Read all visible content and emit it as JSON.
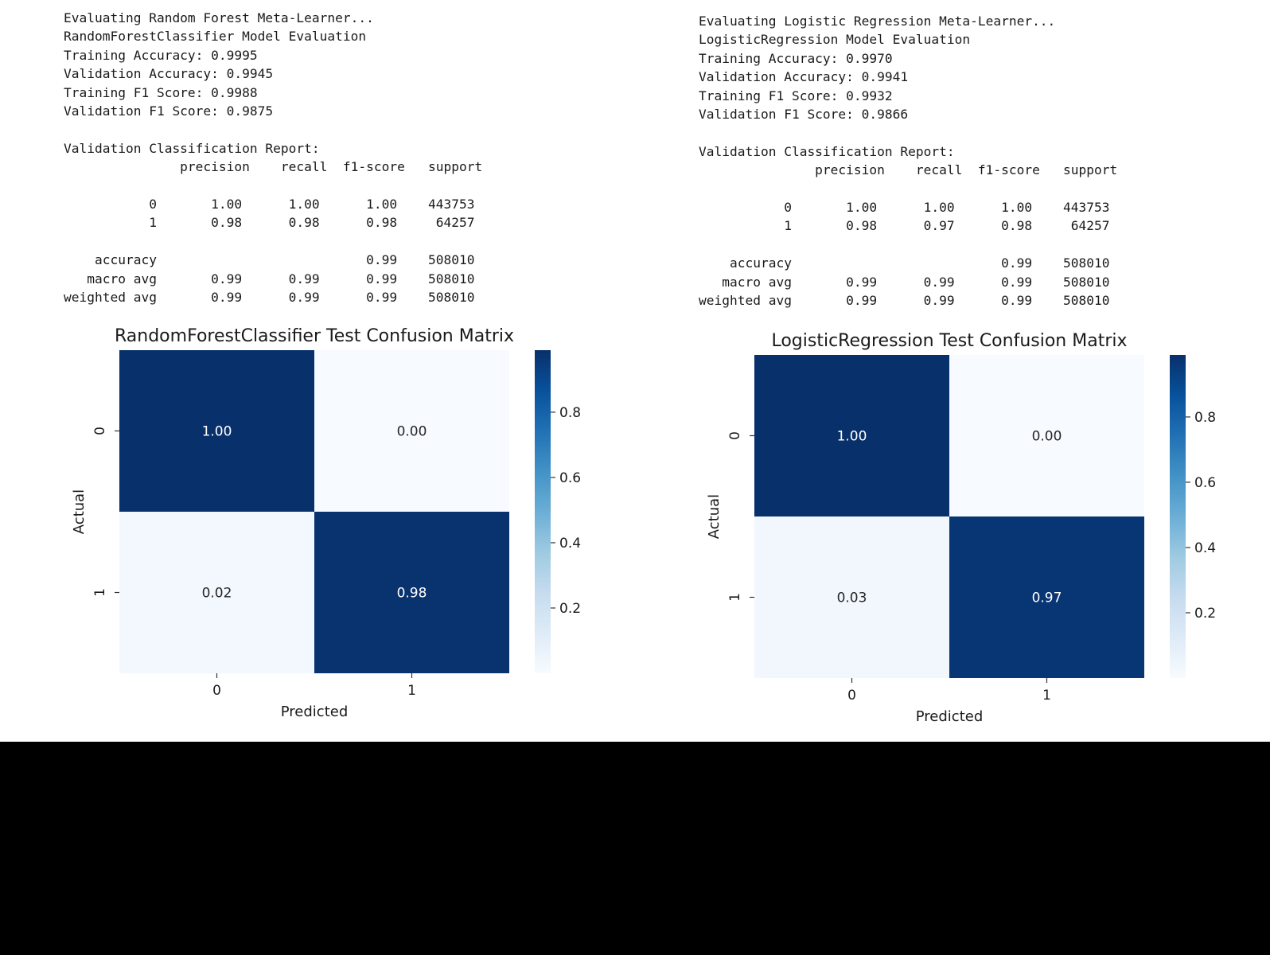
{
  "panels": [
    {
      "log": {
        "lines": [
          "Evaluating Random Forest Meta-Learner...",
          "RandomForestClassifier Model Evaluation",
          "Training Accuracy: 0.9995",
          "Validation Accuracy: 0.9945",
          "Training F1 Score: 0.9988",
          "Validation F1 Score: 0.9875",
          "",
          "Validation Classification Report:",
          "               precision    recall  f1-score   support",
          "",
          "           0       1.00      1.00      1.00    443753",
          "           1       0.98      0.98      0.98     64257",
          "",
          "    accuracy                           0.99    508010",
          "   macro avg       0.99      0.99      0.99    508010",
          "weighted avg       0.99      0.99      0.99    508010"
        ]
      }
    },
    {
      "log": {
        "lines": [
          "Evaluating Logistic Regression Meta-Learner...",
          "LogisticRegression Model Evaluation",
          "Training Accuracy: 0.9970",
          "Validation Accuracy: 0.9941",
          "Training F1 Score: 0.9932",
          "Validation F1 Score: 0.9866",
          "",
          "Validation Classification Report:",
          "               precision    recall  f1-score   support",
          "",
          "           0       1.00      1.00      1.00    443753",
          "           1       0.98      0.97      0.98     64257",
          "",
          "    accuracy                           0.99    508010",
          "   macro avg       0.99      0.99      0.99    508010",
          "weighted avg       0.99      0.99      0.99    508010"
        ]
      }
    }
  ],
  "chart_data": [
    {
      "type": "heatmap",
      "title": "RandomForestClassifier Test Confusion Matrix",
      "xlabel": "Predicted",
      "ylabel": "Actual",
      "x_categories": [
        "0",
        "1"
      ],
      "y_categories": [
        "0",
        "1"
      ],
      "values": [
        [
          1.0,
          0.0
        ],
        [
          0.02,
          0.98
        ]
      ],
      "cell_labels": [
        [
          "1.00",
          "0.00"
        ],
        [
          "0.02",
          "0.98"
        ]
      ],
      "colormap": "Blues",
      "colorbar": {
        "range": [
          0.0,
          0.99
        ],
        "ticks": [
          0.2,
          0.4,
          0.6,
          0.8
        ],
        "tick_labels": [
          "0.2",
          "0.4",
          "0.6",
          "0.8"
        ]
      }
    },
    {
      "type": "heatmap",
      "title": "LogisticRegression Test Confusion Matrix",
      "xlabel": "Predicted",
      "ylabel": "Actual",
      "x_categories": [
        "0",
        "1"
      ],
      "y_categories": [
        "0",
        "1"
      ],
      "values": [
        [
          1.0,
          0.0
        ],
        [
          0.03,
          0.97
        ]
      ],
      "cell_labels": [
        [
          "1.00",
          "0.00"
        ],
        [
          "0.03",
          "0.97"
        ]
      ],
      "colormap": "Blues",
      "colorbar": {
        "range": [
          0.0,
          0.99
        ],
        "ticks": [
          0.2,
          0.4,
          0.6,
          0.8
        ],
        "tick_labels": [
          "0.2",
          "0.4",
          "0.6",
          "0.8"
        ]
      }
    }
  ],
  "colors": {
    "text": "#1a1a1a",
    "background": "#ffffff",
    "page_bg": "#000000"
  }
}
